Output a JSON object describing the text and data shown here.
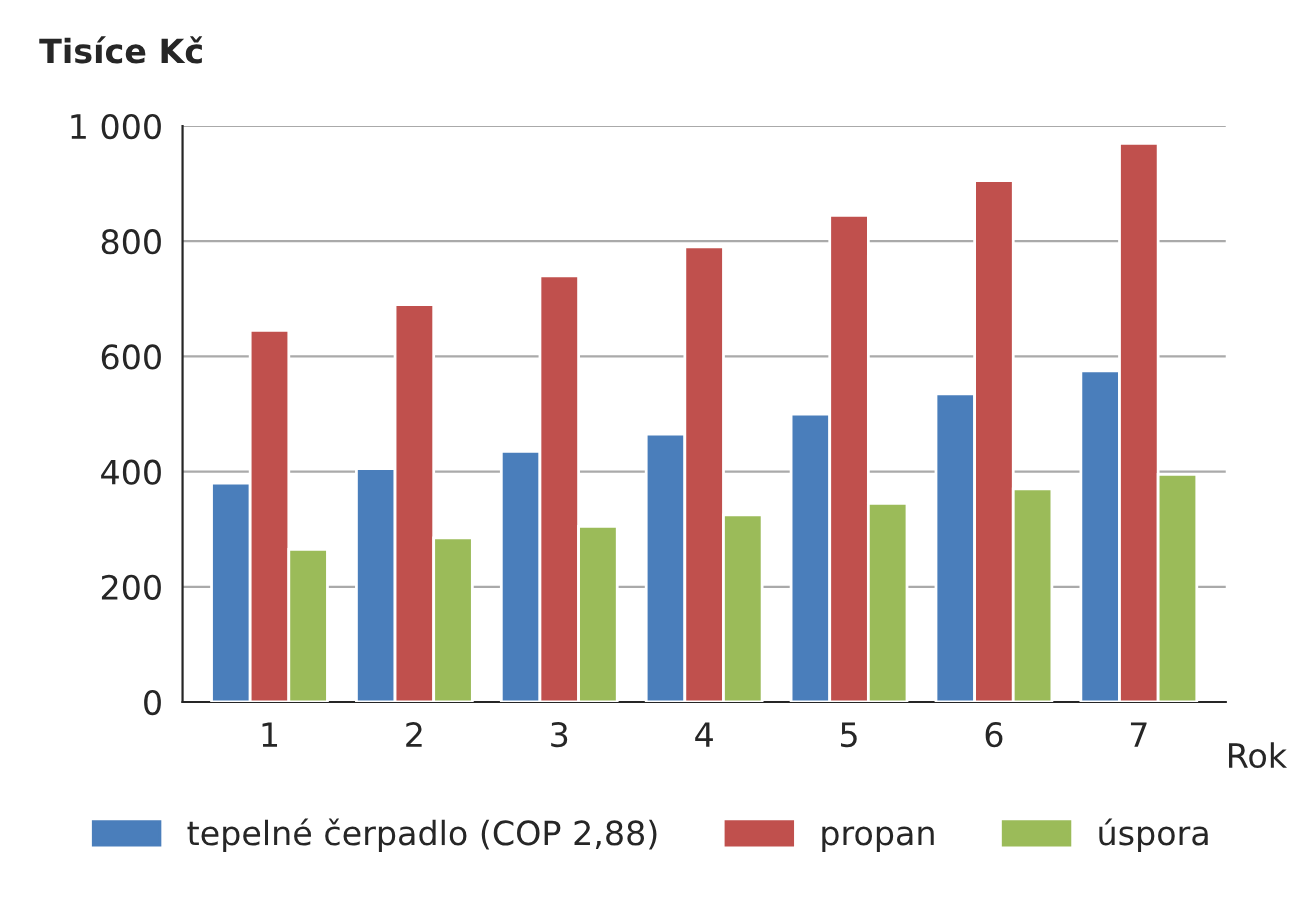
{
  "chart_data": {
    "type": "bar",
    "ylabel": "Tisíce Kč",
    "xlabel": "Rok",
    "categories": [
      "1",
      "2",
      "3",
      "4",
      "5",
      "6",
      "7"
    ],
    "series": [
      {
        "name": "tepelné čerpadlo (COP 2,88)",
        "color": "#4a7ebb",
        "values": [
          380,
          405,
          435,
          465,
          500,
          535,
          575
        ]
      },
      {
        "name": "propan",
        "color": "#c0504d",
        "values": [
          645,
          690,
          740,
          790,
          845,
          905,
          970
        ]
      },
      {
        "name": "úspora",
        "color": "#9bbb59",
        "values": [
          265,
          285,
          305,
          325,
          345,
          370,
          395
        ]
      }
    ],
    "ylim": [
      0,
      1000
    ],
    "yticks": [
      0,
      200,
      400,
      600,
      800,
      {
        "value": 1000,
        "label": "1 000"
      }
    ],
    "grid": "y",
    "legend": "bottom"
  }
}
